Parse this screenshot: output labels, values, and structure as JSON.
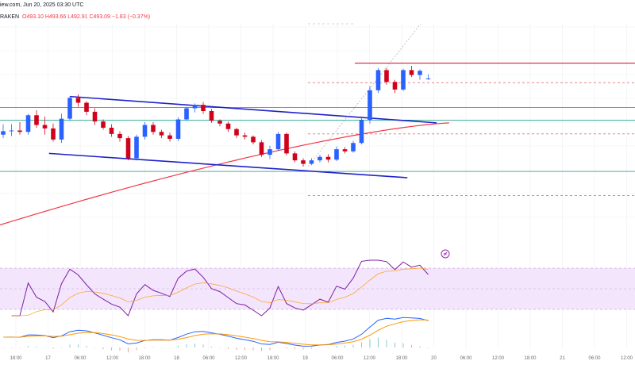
{
  "header": {
    "line1": "iew.com, Jun 20, 2025 03:30 UTC",
    "line2_prefix": "RAKEN",
    "ohlc": "O493.10  H493.66  L492.91  C493.09  −1.83  (−0.37%)"
  },
  "chart_data": {
    "type": "candlestick",
    "time_axis_labels": [
      "18:00",
      "17",
      "06:00",
      "12:00",
      "18:00",
      "18",
      "06:00",
      "12:00",
      "18:00",
      "19",
      "06:00",
      "12:00",
      "18:00",
      "20",
      "06:00",
      "12:00",
      "18:00",
      "21",
      "06:00",
      "12:00"
    ],
    "colors": {
      "up": "#2962ff",
      "down": "#d0021b",
      "channel": "#1f22c8",
      "support": "#089981",
      "ma": "#f23645",
      "resist": "#d0021b",
      "rsi_band": "#f0e0ff",
      "rsi": "#7e1fa3",
      "macd": "#2962ff",
      "signal": "#ff9800"
    },
    "candles": [
      [
        485,
        486.5,
        484.5,
        485.5
      ],
      [
        485.5,
        486.5,
        484.8,
        485.6
      ],
      [
        485.6,
        486.8,
        485,
        485.4
      ],
      [
        485.4,
        488,
        485,
        487.8
      ],
      [
        487.8,
        488.5,
        486,
        486.4
      ],
      [
        486.4,
        487.6,
        485,
        485.9
      ],
      [
        485.9,
        486.6,
        484,
        484.3
      ],
      [
        484.3,
        488,
        483.8,
        487.3
      ],
      [
        487.3,
        490.5,
        487,
        490.3
      ],
      [
        490.3,
        490.8,
        489,
        489.6
      ],
      [
        489.6,
        489.8,
        487.8,
        488.3
      ],
      [
        488.3,
        488.8,
        486.4,
        486.9
      ],
      [
        486.9,
        487.2,
        485.7,
        486
      ],
      [
        486,
        486.5,
        484.7,
        485.1
      ],
      [
        485.1,
        485.5,
        484,
        484.5
      ],
      [
        484.5,
        484.8,
        481.3,
        481.6
      ],
      [
        481.6,
        485,
        481.3,
        484.7
      ],
      [
        484.7,
        486.8,
        484.3,
        486.4
      ],
      [
        486.4,
        486.8,
        485,
        485.4
      ],
      [
        485.4,
        485.7,
        484.5,
        484.9
      ],
      [
        484.9,
        485.3,
        484,
        484.4
      ],
      [
        484.4,
        487.5,
        484.1,
        487.2
      ],
      [
        487.2,
        489,
        487,
        488.8
      ],
      [
        488.8,
        489.5,
        488.2,
        489.3
      ],
      [
        489.3,
        489.7,
        488,
        488.4
      ],
      [
        488.4,
        488.7,
        486.7,
        487
      ],
      [
        487,
        487.2,
        486.2,
        486.6
      ],
      [
        486.6,
        486.9,
        485.4,
        485.8
      ],
      [
        485.8,
        486,
        484.5,
        484.9
      ],
      [
        484.9,
        485.3,
        484.3,
        484.7
      ],
      [
        484.7,
        484.9,
        483.6,
        483.9
      ],
      [
        483.9,
        484.2,
        481.8,
        482.1
      ],
      [
        482.1,
        483.4,
        481.5,
        482.9
      ],
      [
        482.9,
        485.4,
        482.7,
        485.1
      ],
      [
        485.1,
        485.3,
        482,
        482.3
      ],
      [
        482.3,
        482.6,
        481,
        481.3
      ],
      [
        481.3,
        481.6,
        480.4,
        480.8
      ],
      [
        480.8,
        481.6,
        480.6,
        481.3
      ],
      [
        481.3,
        482.1,
        481,
        481.8
      ],
      [
        481.8,
        482.2,
        481,
        481.4
      ],
      [
        481.4,
        483.3,
        481.2,
        482.9
      ],
      [
        482.9,
        483.2,
        482.3,
        482.6
      ],
      [
        482.6,
        484.1,
        482.4,
        483.8
      ],
      [
        483.8,
        487.4,
        483.6,
        487.1
      ],
      [
        487.1,
        492,
        486.6,
        491.4
      ],
      [
        491.4,
        494.6,
        491,
        494.3
      ],
      [
        494.3,
        494.6,
        492.2,
        492.6
      ],
      [
        492.6,
        492.9,
        491,
        491.5
      ],
      [
        491.5,
        494.5,
        491.3,
        494.3
      ],
      [
        494.3,
        494.9,
        493.3,
        493.6
      ],
      [
        493.6,
        494.4,
        492.9,
        494.2
      ],
      [
        493.1,
        493.7,
        492.9,
        493.1
      ]
    ],
    "ma_start": 472,
    "ma_end": 486.7,
    "channel_top": [
      [
        8,
        490.5
      ],
      [
        52,
        486.7
      ]
    ],
    "channel_bottom": [
      [
        5.5,
        482.3
      ],
      [
        48.5,
        478.8
      ]
    ],
    "support_levels": [
      488.9,
      487.1,
      479.7
    ],
    "resistance_levels": [
      495.3,
      492.5,
      485.1,
      476.2
    ]
  }
}
